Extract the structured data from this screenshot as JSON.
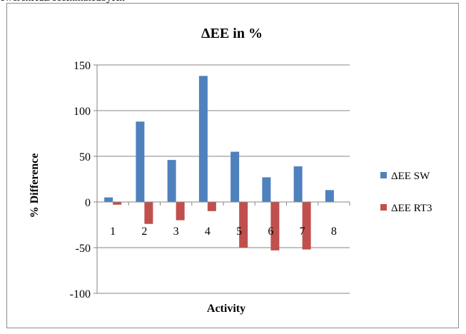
{
  "header_fragment": "ewerenHuDeceInmatedbyHn",
  "chart_data": {
    "type": "bar",
    "title": "ΔEE in %",
    "xlabel": "Activity",
    "ylabel": "% Difference",
    "categories": [
      "1",
      "2",
      "3",
      "4",
      "5",
      "6",
      "7",
      "8"
    ],
    "ylim": [
      -100,
      150
    ],
    "yticks": [
      150,
      100,
      50,
      0,
      -50,
      -100
    ],
    "grid": true,
    "legend_position": "right",
    "series": [
      {
        "name": "ΔEE SW",
        "color": "#4f81bd",
        "values": [
          5,
          88,
          46,
          138,
          55,
          27,
          39,
          13
        ]
      },
      {
        "name": "ΔEE RT3",
        "color": "#c0504d",
        "values": [
          -3,
          -24,
          -20,
          -10,
          -50,
          -53,
          -52,
          0
        ]
      }
    ]
  }
}
